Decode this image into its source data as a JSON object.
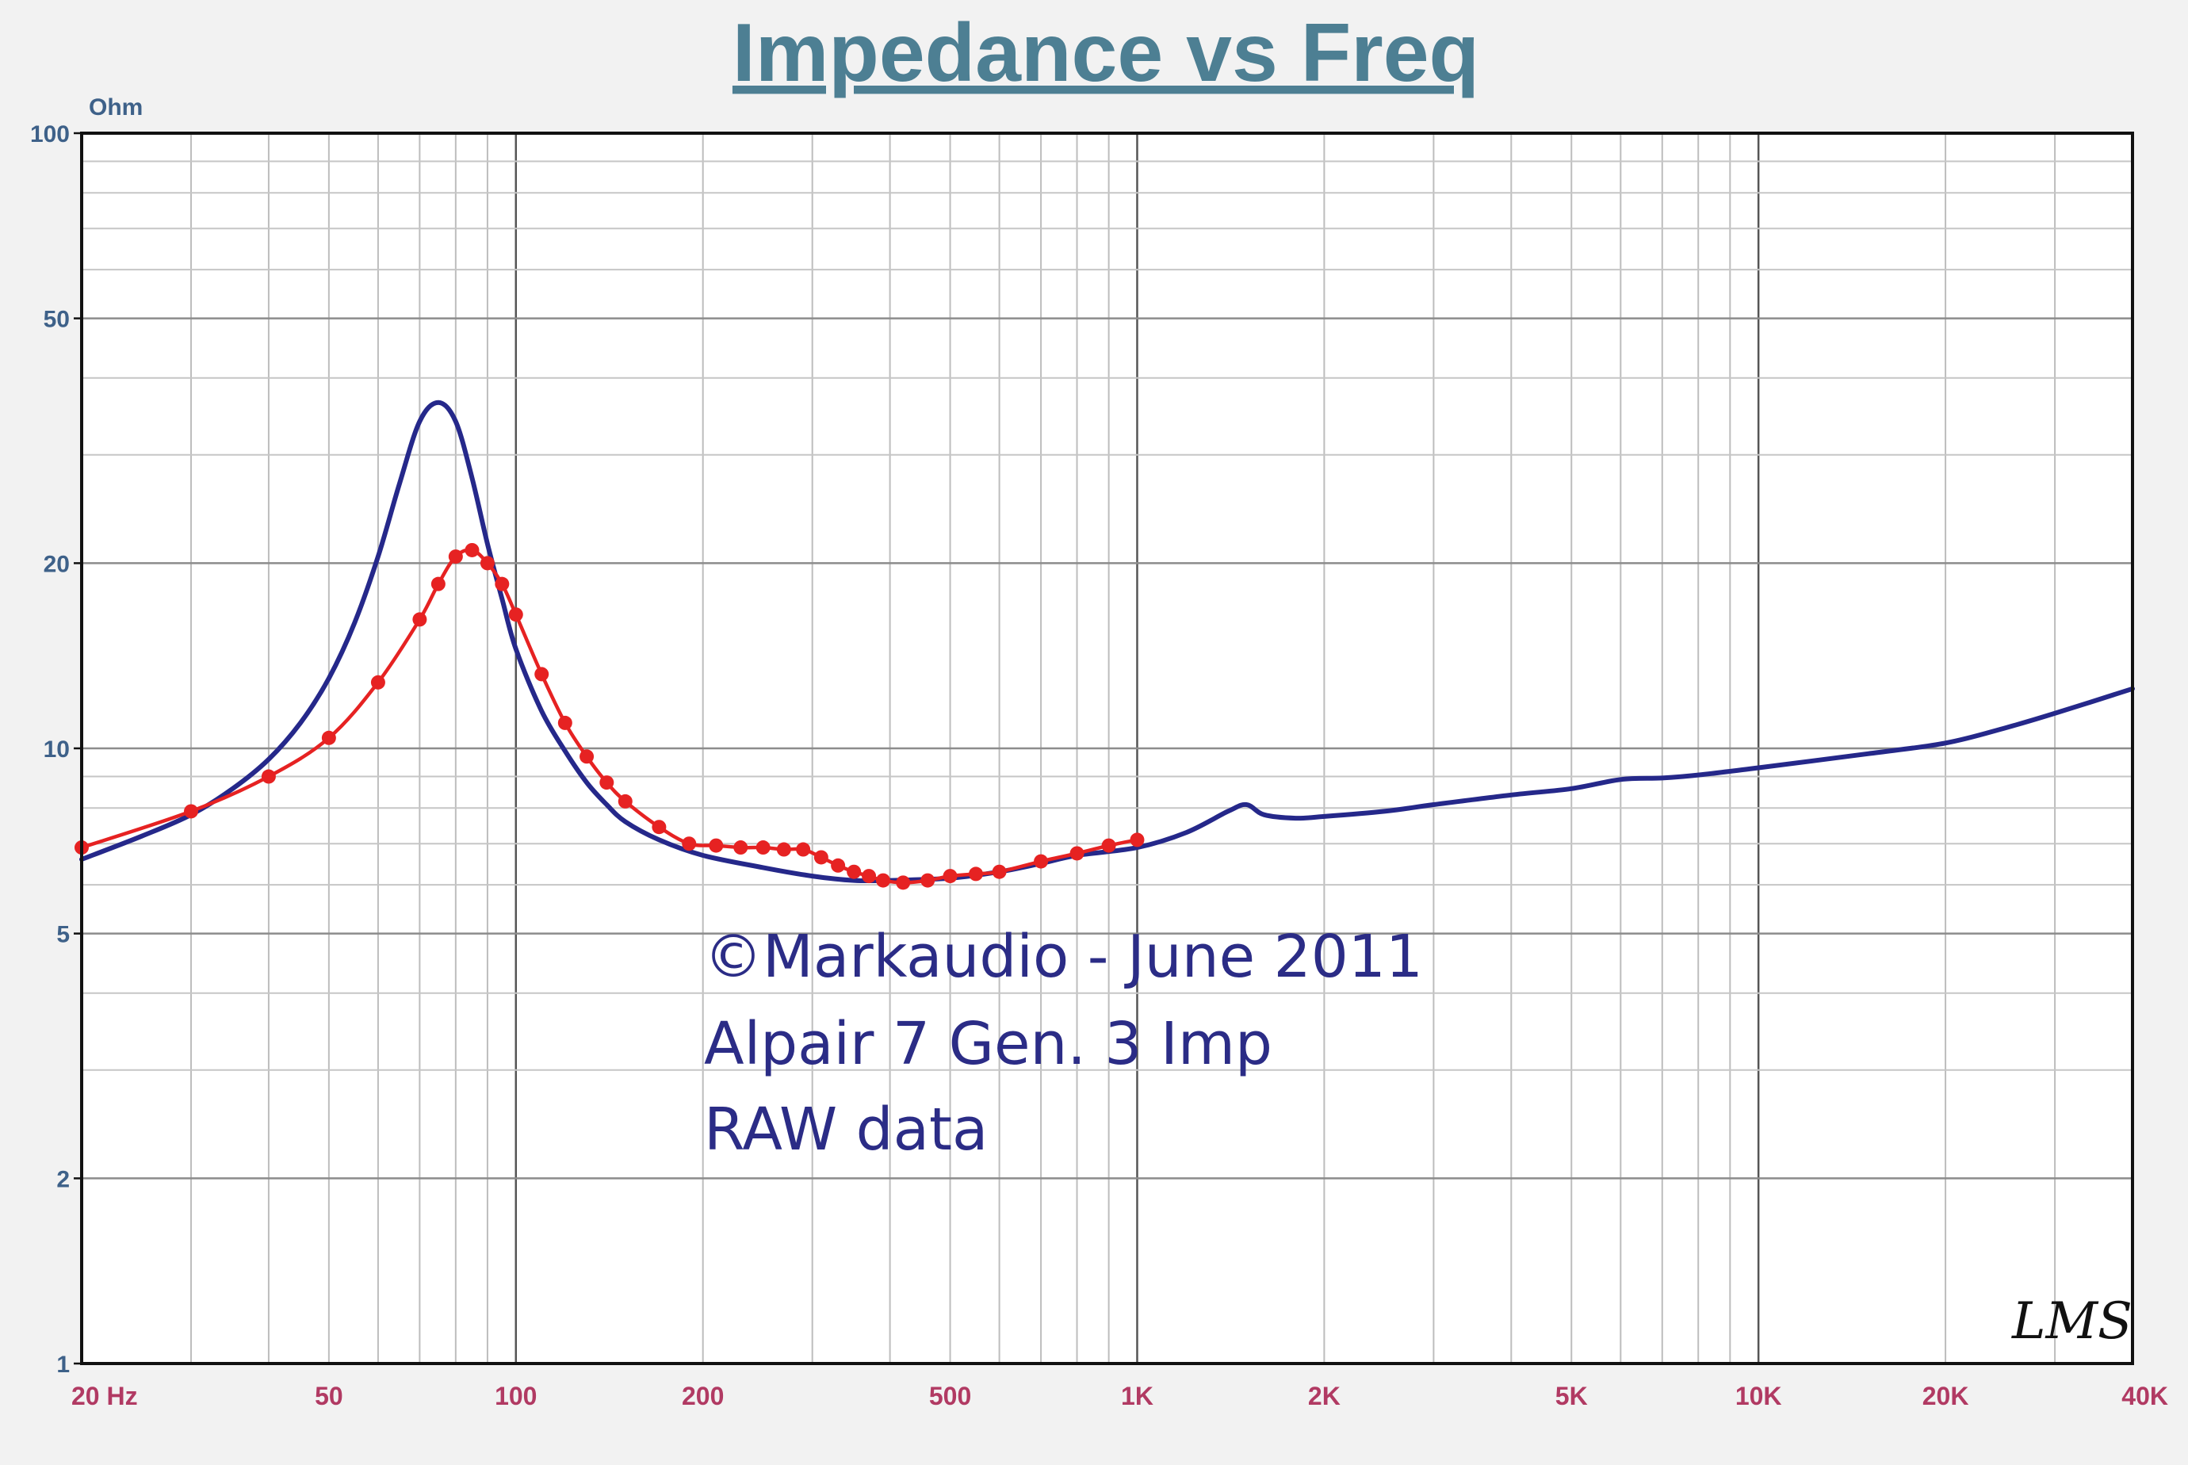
{
  "chart_data": {
    "type": "line",
    "title": "Impedance vs Freq",
    "ylabel": "Ohm",
    "xlabel": "",
    "xscale": "log",
    "yscale": "log",
    "xlim": [
      20,
      40000
    ],
    "ylim": [
      1,
      100
    ],
    "grid": true,
    "x_ticks": [
      {
        "value": 20,
        "label": "20  Hz"
      },
      {
        "value": 50,
        "label": "50"
      },
      {
        "value": 100,
        "label": "100"
      },
      {
        "value": 200,
        "label": "200"
      },
      {
        "value": 500,
        "label": "500"
      },
      {
        "value": 1000,
        "label": "1K"
      },
      {
        "value": 2000,
        "label": "2K"
      },
      {
        "value": 5000,
        "label": "5K"
      },
      {
        "value": 10000,
        "label": "10K"
      },
      {
        "value": 20000,
        "label": "20K"
      },
      {
        "value": 40000,
        "label": "40K"
      }
    ],
    "y_ticks": [
      {
        "value": 100,
        "label": "100"
      },
      {
        "value": 50,
        "label": "50"
      },
      {
        "value": 20,
        "label": "20"
      },
      {
        "value": 10,
        "label": "10"
      },
      {
        "value": 5,
        "label": "5"
      },
      {
        "value": 2,
        "label": "2"
      },
      {
        "value": 1,
        "label": "1"
      }
    ],
    "series": [
      {
        "color": "#25288a",
        "markers": false,
        "x": [
          20,
          25,
          30,
          35,
          40,
          45,
          50,
          55,
          60,
          65,
          70,
          75,
          80,
          85,
          90,
          95,
          100,
          110,
          120,
          130,
          140,
          150,
          170,
          200,
          250,
          300,
          350,
          400,
          500,
          600,
          700,
          800,
          1000,
          1200,
          1400,
          1500,
          1600,
          1800,
          2000,
          2500,
          3000,
          4000,
          5000,
          6000,
          7000,
          8000,
          10000,
          15000,
          20000,
          25000,
          30000,
          40000
        ],
        "y": [
          6.6,
          7.2,
          7.8,
          8.6,
          9.6,
          11.0,
          13.0,
          16.0,
          20.5,
          27.0,
          34.0,
          36.5,
          34.0,
          27.5,
          21.5,
          17.5,
          14.5,
          11.5,
          9.9,
          8.8,
          8.1,
          7.6,
          7.1,
          6.7,
          6.4,
          6.2,
          6.1,
          6.1,
          6.15,
          6.3,
          6.5,
          6.7,
          6.9,
          7.3,
          7.9,
          8.1,
          7.8,
          7.7,
          7.75,
          7.9,
          8.1,
          8.4,
          8.6,
          8.9,
          8.95,
          9.05,
          9.3,
          9.8,
          10.2,
          10.8,
          11.4,
          12.5
        ]
      },
      {
        "color": "#e62222",
        "markers": true,
        "x": [
          20,
          30,
          40,
          50,
          60,
          70,
          75,
          80,
          85,
          90,
          95,
          100,
          110,
          120,
          130,
          140,
          150,
          170,
          190,
          210,
          230,
          250,
          270,
          290,
          310,
          330,
          350,
          370,
          390,
          420,
          460,
          500,
          550,
          600,
          700,
          800,
          900,
          1000
        ],
        "y": [
          6.9,
          7.9,
          9.0,
          10.4,
          12.8,
          16.2,
          18.5,
          20.5,
          21.0,
          20.0,
          18.5,
          16.5,
          13.2,
          11.0,
          9.7,
          8.8,
          8.2,
          7.45,
          7.0,
          6.95,
          6.9,
          6.9,
          6.85,
          6.85,
          6.65,
          6.45,
          6.3,
          6.2,
          6.1,
          6.05,
          6.1,
          6.2,
          6.25,
          6.3,
          6.55,
          6.75,
          6.95,
          7.1
        ]
      }
    ],
    "annotations": [
      "©Markaudio - June 2011",
      "Alpair 7 Gen. 3 Imp",
      "RAW data"
    ],
    "logo_text": "LMS"
  }
}
